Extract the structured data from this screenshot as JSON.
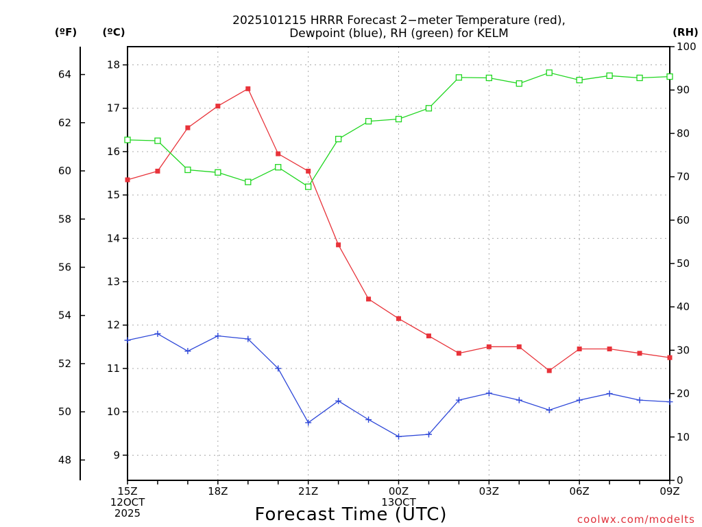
{
  "title_line1": "2025101215 HRRR Forecast 2−meter Temperature (red),",
  "title_line2": "Dewpoint (blue), RH (green) for KELM",
  "credit": "coolwx.com/modelts",
  "units": {
    "fahrenheit": "(ºF)",
    "celsius": "(ºC)",
    "rh": "(RH)"
  },
  "colors": {
    "temp": "#e8333a",
    "dewpoint": "#2d47d8",
    "rh": "#1fd61f",
    "grid": "#a8a8a8",
    "axis": "#000000"
  },
  "chart_data": {
    "type": "line",
    "title": "2025101215 HRRR Forecast 2−meter Temperature (red), Dewpoint (blue), RH (green) for KELM",
    "xlabel": "Forecast Time (UTC)",
    "x_hours": [
      0,
      1,
      2,
      3,
      4,
      5,
      6,
      7,
      8,
      9,
      10,
      11,
      12,
      13,
      14,
      15,
      16,
      17,
      18
    ],
    "x_ticks": [
      {
        "hour": 0,
        "lines": [
          "15Z",
          "12OCT",
          "2025"
        ]
      },
      {
        "hour": 3,
        "lines": [
          "18Z"
        ]
      },
      {
        "hour": 6,
        "lines": [
          "21Z"
        ]
      },
      {
        "hour": 9,
        "lines": [
          "00Z",
          "13OCT"
        ]
      },
      {
        "hour": 12,
        "lines": [
          "03Z"
        ]
      },
      {
        "hour": 15,
        "lines": [
          "06Z"
        ]
      },
      {
        "hour": 18,
        "lines": [
          "09Z"
        ]
      }
    ],
    "celsius_axis": {
      "label": "(ºC)",
      "range": [
        8.42,
        18.42
      ],
      "ticks": [
        9,
        10,
        11,
        12,
        13,
        14,
        15,
        16,
        17,
        18
      ]
    },
    "fahrenheit_axis": {
      "label": "(ºF)",
      "ticks": [
        48,
        50,
        52,
        54,
        56,
        58,
        60,
        62,
        64
      ]
    },
    "rh_axis": {
      "label": "(RH)",
      "range": [
        0,
        100
      ],
      "ticks": [
        0,
        10,
        20,
        30,
        40,
        50,
        60,
        70,
        80,
        90,
        100
      ]
    },
    "series": [
      {
        "name": "Temperature",
        "axis": "celsius",
        "color": "#e8333a",
        "marker": "filled-square",
        "values": [
          15.35,
          15.55,
          16.55,
          17.05,
          17.45,
          15.95,
          15.55,
          13.85,
          12.6,
          12.15,
          11.75,
          11.35,
          11.5,
          11.5,
          10.95,
          11.45,
          11.45,
          11.35,
          11.25
        ]
      },
      {
        "name": "Dewpoint",
        "axis": "celsius",
        "color": "#2d47d8",
        "marker": "plus",
        "values": [
          11.65,
          11.8,
          11.4,
          11.75,
          11.68,
          11.0,
          9.75,
          10.25,
          9.82,
          9.43,
          9.48,
          10.27,
          10.43,
          10.27,
          10.04,
          10.27,
          10.42,
          10.27,
          10.23
        ]
      },
      {
        "name": "RH",
        "axis": "rh",
        "color": "#1fd61f",
        "marker": "open-square",
        "values": [
          78.5,
          78.3,
          71.6,
          71.0,
          68.8,
          72.2,
          67.7,
          78.7,
          82.8,
          83.3,
          85.8,
          92.9,
          92.8,
          91.5,
          94.0,
          92.3,
          93.3,
          92.8,
          93.1
        ]
      }
    ]
  }
}
